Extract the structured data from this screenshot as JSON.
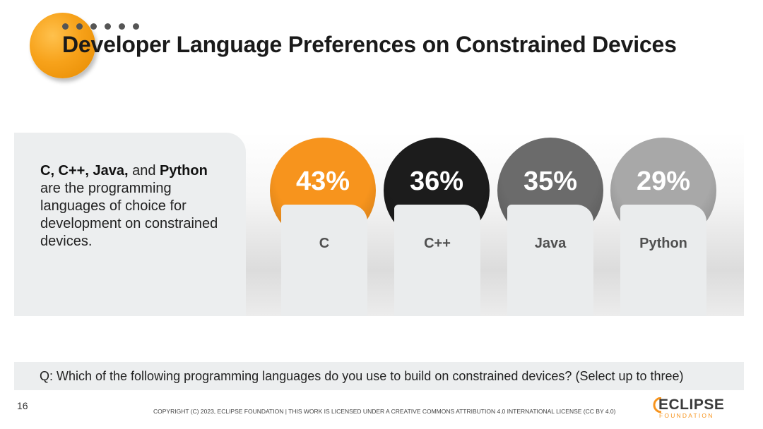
{
  "title": "Developer Language Preferences on Constrained Devices",
  "summary": {
    "lang1": "C, C++, Java,",
    "and": "and",
    "lang2": "Python",
    "rest": "are the programming languages of choice for development on constrained devices."
  },
  "chart_data": {
    "type": "bar",
    "title": "Developer Language Preferences on Constrained Devices",
    "categories": [
      "C",
      "C++",
      "Java",
      "Python"
    ],
    "values": [
      43,
      36,
      35,
      29
    ],
    "labels": [
      "43%",
      "36%",
      "35%",
      "29%"
    ],
    "unit": "%",
    "colors": [
      "#f7941d",
      "#1c1c1c",
      "#6b6b6b",
      "#a8a8a8"
    ]
  },
  "question": "Q: Which of the following programming languages do you use to build on constrained devices? (Select up to three)",
  "footer": {
    "page_number": "16",
    "copyright": "COPYRIGHT (C) 2023, ECLIPSE FOUNDATION | THIS WORK IS LICENSED UNDER A CREATIVE COMMONS ATTRIBUTION 4.0 INTERNATIONAL LICENSE (CC BY 4.0)",
    "logo_name": "ECLIPSE",
    "logo_sub": "FOUNDATION"
  },
  "colors": {
    "accent": "#f7941d",
    "panel": "#eceeef"
  }
}
